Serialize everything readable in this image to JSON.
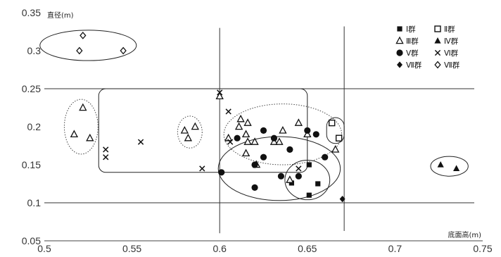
{
  "chart_data": {
    "type": "scatter",
    "xlabel": "底面高(m)",
    "ylabel": "直径(m)",
    "xlim": [
      0.5,
      0.75
    ],
    "ylim": [
      0.05,
      0.35
    ],
    "x_ticks": [
      "0.5",
      "0.55",
      "0.6",
      "0.65",
      "0.7",
      "0.75"
    ],
    "y_ticks": [
      "0.05",
      "0.1",
      "0.15",
      "0.2",
      "0.25",
      "0.3",
      "0.35"
    ],
    "grid": false,
    "legend_position": "top-right",
    "reference_lines": {
      "horizontal": [
        0.1,
        0.25
      ],
      "vertical": [
        0.6,
        0.671
      ]
    },
    "series": [
      {
        "name": "Ⅰ群",
        "marker": "square-filled",
        "points": [
          [
            0.641,
            0.126
          ],
          [
            0.651,
            0.15
          ],
          [
            0.651,
            0.11
          ],
          [
            0.656,
            0.125
          ]
        ]
      },
      {
        "name": "Ⅱ群",
        "marker": "square-open",
        "points": [
          [
            0.664,
            0.205
          ],
          [
            0.668,
            0.185
          ]
        ]
      },
      {
        "name": "Ⅲ群",
        "marker": "triangle-open",
        "points": [
          [
            0.517,
            0.19
          ],
          [
            0.522,
            0.225
          ],
          [
            0.526,
            0.185
          ],
          [
            0.58,
            0.195
          ],
          [
            0.582,
            0.185
          ],
          [
            0.586,
            0.2
          ],
          [
            0.6,
            0.24
          ],
          [
            0.605,
            0.185
          ],
          [
            0.611,
            0.2
          ],
          [
            0.612,
            0.21
          ],
          [
            0.615,
            0.19
          ],
          [
            0.615,
            0.165
          ],
          [
            0.616,
            0.18
          ],
          [
            0.616,
            0.205
          ],
          [
            0.62,
            0.18
          ],
          [
            0.621,
            0.15
          ],
          [
            0.631,
            0.18
          ],
          [
            0.634,
            0.18
          ],
          [
            0.636,
            0.195
          ],
          [
            0.64,
            0.13
          ],
          [
            0.645,
            0.205
          ],
          [
            0.65,
            0.19
          ],
          [
            0.666,
            0.17
          ]
        ]
      },
      {
        "name": "Ⅳ群",
        "marker": "triangle-filled",
        "points": [
          [
            0.726,
            0.15
          ],
          [
            0.735,
            0.145
          ]
        ]
      },
      {
        "name": "Ⅴ群",
        "marker": "circle-filled",
        "points": [
          [
            0.601,
            0.14
          ],
          [
            0.61,
            0.185
          ],
          [
            0.62,
            0.12
          ],
          [
            0.62,
            0.15
          ],
          [
            0.625,
            0.195
          ],
          [
            0.625,
            0.16
          ],
          [
            0.631,
            0.185
          ],
          [
            0.635,
            0.135
          ],
          [
            0.64,
            0.17
          ],
          [
            0.645,
            0.135
          ],
          [
            0.65,
            0.195
          ],
          [
            0.655,
            0.19
          ],
          [
            0.66,
            0.16
          ]
        ]
      },
      {
        "name": "Ⅵ群",
        "marker": "cross",
        "points": [
          [
            0.535,
            0.17
          ],
          [
            0.535,
            0.16
          ],
          [
            0.555,
            0.18
          ],
          [
            0.59,
            0.145
          ],
          [
            0.6,
            0.245
          ],
          [
            0.605,
            0.22
          ],
          [
            0.606,
            0.18
          ],
          [
            0.645,
            0.145
          ]
        ]
      },
      {
        "name": "Ⅶ群",
        "marker": "diamond-filled",
        "points": [
          [
            0.67,
            0.105
          ]
        ]
      },
      {
        "name": "Ⅶ群",
        "marker": "diamond-open",
        "points": [
          [
            0.52,
            0.3
          ],
          [
            0.522,
            0.32
          ],
          [
            0.545,
            0.3
          ]
        ]
      }
    ],
    "annotations": {
      "solid_ellipses": [
        {
          "cx": 0.525,
          "cy": 0.307,
          "rx": 0.0275,
          "ry": 0.02
        },
        {
          "cx": 0.634,
          "cy": 0.145,
          "rx": 0.0348,
          "ry": 0.042
        },
        {
          "cx": 0.65,
          "cy": 0.13,
          "rx": 0.0128,
          "ry": 0.026
        },
        {
          "cx": 0.731,
          "cy": 0.148,
          "rx": 0.0107,
          "ry": 0.013
        }
      ],
      "dotted_ellipses": [
        {
          "cx": 0.521,
          "cy": 0.2,
          "rx": 0.0096,
          "ry": 0.036
        },
        {
          "cx": 0.583,
          "cy": 0.193,
          "rx": 0.007,
          "ry": 0.021
        },
        {
          "cx": 0.636,
          "cy": 0.19,
          "rx": 0.0336,
          "ry": 0.04
        }
      ],
      "rounded_rects": [
        {
          "x0": 0.531,
          "x1": 0.65,
          "y0": 0.14,
          "y1": 0.25
        }
      ],
      "stadiums": [
        {
          "x0": 0.661,
          "x1": 0.671,
          "y0": 0.178,
          "y1": 0.212
        }
      ]
    }
  }
}
